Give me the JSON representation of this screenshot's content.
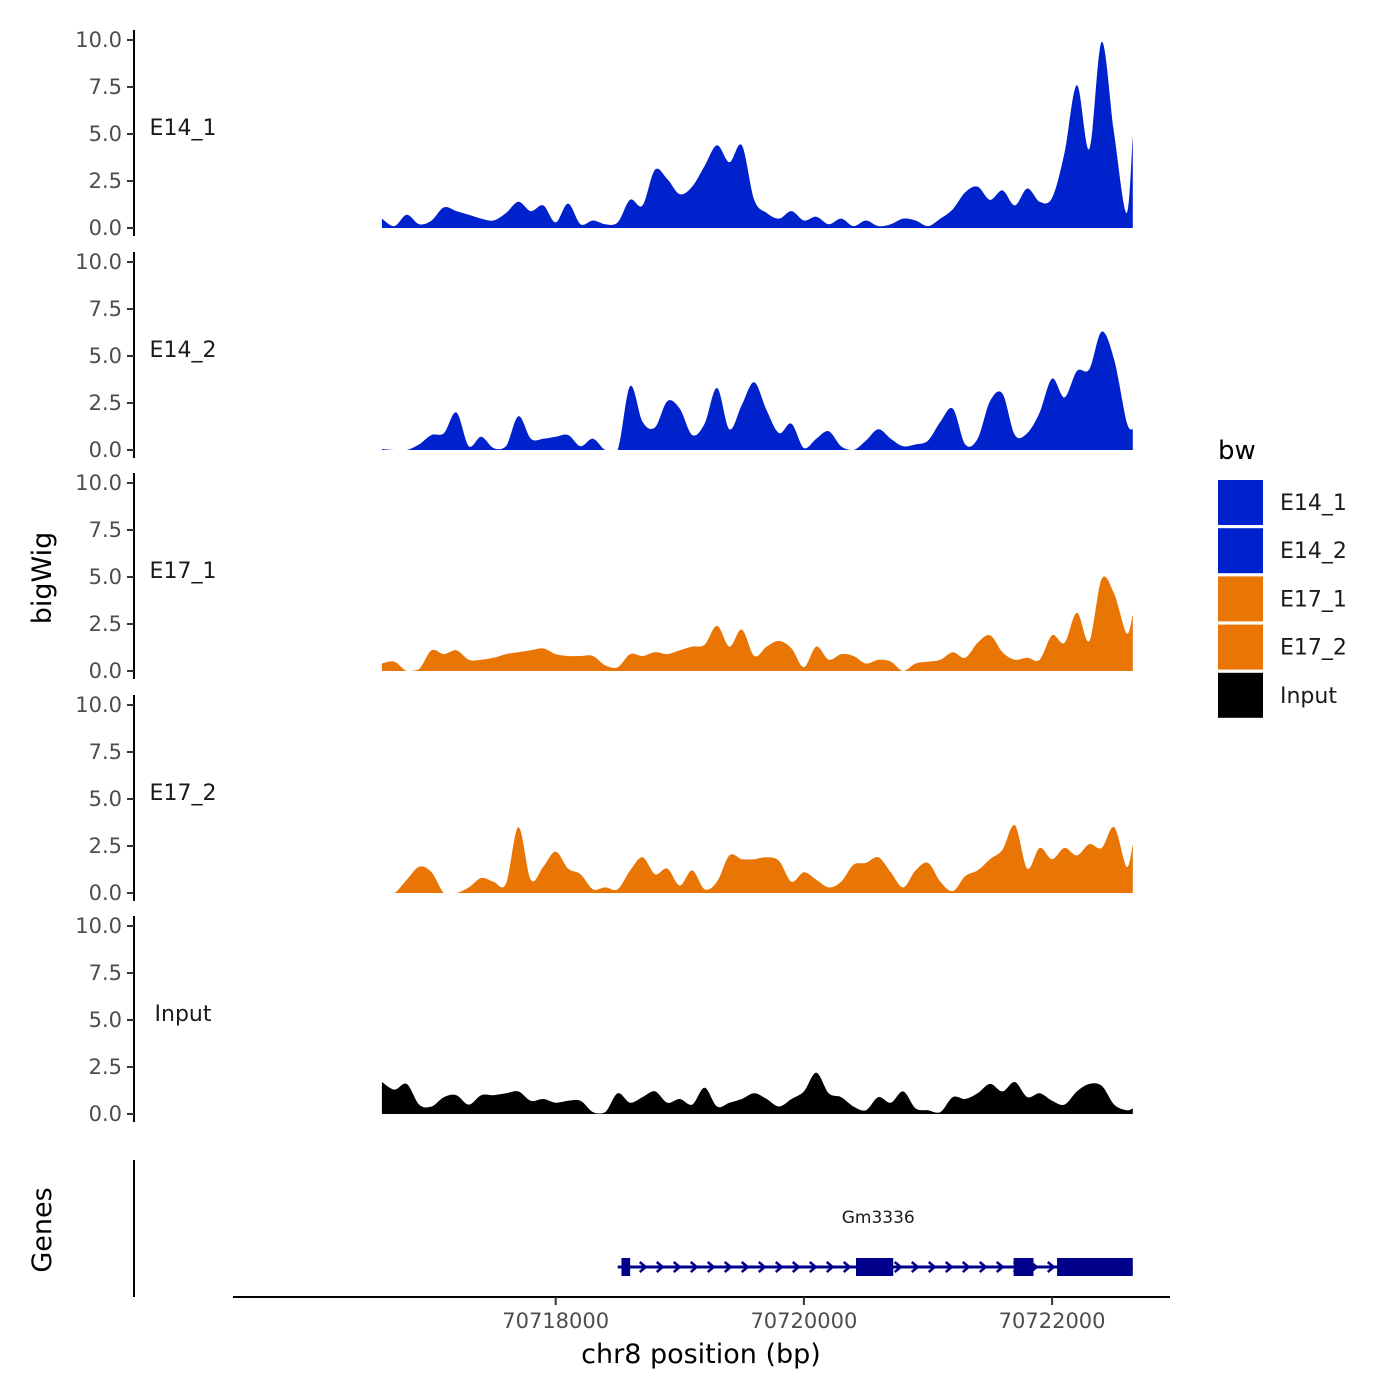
{
  "chart_data": {
    "type": "area",
    "chromosome": "chr8",
    "xlabel": "chr8 position (bp)",
    "ylabel": "bigWig",
    "gene_track_label": "Genes",
    "xlim": [
      70715400,
      70722950
    ],
    "x_ticks": [
      70718000,
      70720000,
      70722000
    ],
    "x_tick_labels": [
      "70718000",
      "70720000",
      "70722000"
    ],
    "ylim": [
      0,
      10
    ],
    "y_ticks": [
      0,
      2.5,
      5,
      7.5,
      10
    ],
    "y_tick_labels": [
      "0.0",
      "2.5",
      "5.0",
      "7.5",
      "10.0"
    ],
    "legend": {
      "title": "bw",
      "entries": [
        {
          "label": "E14_1",
          "color": "#0022cc"
        },
        {
          "label": "E14_2",
          "color": "#0022cc"
        },
        {
          "label": "E17_1",
          "color": "#e87504"
        },
        {
          "label": "E17_2",
          "color": "#e87504"
        },
        {
          "label": "Input",
          "color": "#000000"
        }
      ]
    },
    "series": [
      {
        "name": "E14_1",
        "color": "#0022cc",
        "x": [
          70716600,
          70716700,
          70716800,
          70716900,
          70717000,
          70717100,
          70717200,
          70717300,
          70717400,
          70717500,
          70717600,
          70717700,
          70717800,
          70717900,
          70718000,
          70718100,
          70718200,
          70718300,
          70718400,
          70718500,
          70718600,
          70718700,
          70718800,
          70718900,
          70719000,
          70719100,
          70719200,
          70719300,
          70719400,
          70719500,
          70719600,
          70719700,
          70719800,
          70719900,
          70720000,
          70720100,
          70720200,
          70720300,
          70720400,
          70720500,
          70720600,
          70720700,
          70720800,
          70720900,
          70721000,
          70721100,
          70721200,
          70721300,
          70721400,
          70721500,
          70721600,
          70721700,
          70721800,
          70721900,
          70722000,
          70722100,
          70722200,
          70722300,
          70722400,
          70722500,
          70722600,
          70722650
        ],
        "values": [
          0.5,
          0.1,
          0.7,
          0.2,
          0.4,
          1.1,
          0.9,
          0.7,
          0.5,
          0.4,
          0.8,
          1.4,
          0.9,
          1.2,
          0.3,
          1.3,
          0.2,
          0.4,
          0.2,
          0.3,
          1.5,
          1.2,
          3.1,
          2.6,
          1.8,
          2.2,
          3.3,
          4.4,
          3.5,
          4.4,
          1.5,
          0.8,
          0.5,
          0.9,
          0.4,
          0.6,
          0.2,
          0.5,
          0.1,
          0.4,
          0.1,
          0.2,
          0.5,
          0.4,
          0.1,
          0.5,
          1.0,
          1.9,
          2.2,
          1.5,
          2.0,
          1.2,
          2.1,
          1.4,
          1.6,
          4.0,
          7.6,
          4.2,
          9.9,
          5.0,
          0.8,
          4.9
        ]
      },
      {
        "name": "E14_2",
        "color": "#0022cc",
        "x": [
          70716600,
          70716700,
          70716800,
          70716900,
          70717000,
          70717100,
          70717200,
          70717300,
          70717400,
          70717500,
          70717600,
          70717700,
          70717800,
          70717900,
          70718000,
          70718100,
          70718200,
          70718300,
          70718400,
          70718500,
          70718600,
          70718700,
          70718800,
          70718900,
          70719000,
          70719100,
          70719200,
          70719300,
          70719400,
          70719500,
          70719600,
          70719700,
          70719800,
          70719900,
          70720000,
          70720100,
          70720200,
          70720300,
          70720400,
          70720500,
          70720600,
          70720700,
          70720800,
          70720900,
          70721000,
          70721100,
          70721200,
          70721300,
          70721400,
          70721500,
          70721600,
          70721700,
          70721800,
          70721900,
          70722000,
          70722100,
          70722200,
          70722300,
          70722400,
          70722500,
          70722600,
          70722650
        ],
        "values": [
          0.05,
          0.0,
          0.0,
          0.3,
          0.8,
          0.9,
          2.0,
          0.2,
          0.7,
          0.1,
          0.2,
          1.8,
          0.6,
          0.6,
          0.7,
          0.8,
          0.2,
          0.6,
          0.0,
          0.0,
          3.4,
          1.5,
          1.2,
          2.6,
          2.2,
          0.8,
          1.4,
          3.3,
          1.1,
          2.4,
          3.6,
          2.1,
          0.9,
          1.4,
          0.1,
          0.6,
          1.0,
          0.2,
          0.0,
          0.5,
          1.1,
          0.6,
          0.2,
          0.3,
          0.5,
          1.5,
          2.2,
          0.3,
          0.6,
          2.6,
          3.0,
          0.8,
          0.9,
          2.0,
          3.8,
          2.8,
          4.2,
          4.3,
          6.3,
          4.8,
          1.5,
          1.1
        ]
      },
      {
        "name": "E17_1",
        "color": "#e87504",
        "x": [
          70716600,
          70716700,
          70716800,
          70716900,
          70717000,
          70717100,
          70717200,
          70717300,
          70717400,
          70717500,
          70717600,
          70717700,
          70717800,
          70717900,
          70718000,
          70718100,
          70718200,
          70718300,
          70718400,
          70718500,
          70718600,
          70718700,
          70718800,
          70718900,
          70719000,
          70719100,
          70719200,
          70719300,
          70719400,
          70719500,
          70719600,
          70719700,
          70719800,
          70719900,
          70720000,
          70720100,
          70720200,
          70720300,
          70720400,
          70720500,
          70720600,
          70720700,
          70720800,
          70720900,
          70721000,
          70721100,
          70721200,
          70721300,
          70721400,
          70721500,
          70721600,
          70721700,
          70721800,
          70721900,
          70722000,
          70722100,
          70722200,
          70722300,
          70722400,
          70722500,
          70722600,
          70722650
        ],
        "values": [
          0.4,
          0.5,
          0.0,
          0.1,
          1.1,
          0.9,
          1.1,
          0.6,
          0.6,
          0.7,
          0.9,
          1.0,
          1.1,
          1.2,
          0.9,
          0.8,
          0.8,
          0.8,
          0.3,
          0.2,
          0.9,
          0.8,
          1.0,
          0.9,
          1.1,
          1.3,
          1.4,
          2.4,
          1.3,
          2.2,
          0.8,
          1.3,
          1.6,
          1.2,
          0.2,
          1.3,
          0.6,
          0.9,
          0.8,
          0.4,
          0.6,
          0.5,
          0.0,
          0.4,
          0.5,
          0.6,
          1.0,
          0.7,
          1.5,
          1.9,
          1.0,
          0.6,
          0.7,
          0.6,
          1.9,
          1.5,
          3.1,
          1.6,
          4.9,
          4.1,
          2.0,
          3.0
        ]
      },
      {
        "name": "E17_2",
        "color": "#e87504",
        "x": [
          70716600,
          70716700,
          70716800,
          70716900,
          70717000,
          70717100,
          70717200,
          70717300,
          70717400,
          70717500,
          70717600,
          70717700,
          70717800,
          70717900,
          70718000,
          70718100,
          70718200,
          70718300,
          70718400,
          70718500,
          70718600,
          70718700,
          70718800,
          70718900,
          70719000,
          70719100,
          70719200,
          70719300,
          70719400,
          70719500,
          70719600,
          70719700,
          70719800,
          70719900,
          70720000,
          70720100,
          70720200,
          70720300,
          70720400,
          70720500,
          70720600,
          70720700,
          70720800,
          70720900,
          70721000,
          70721100,
          70721200,
          70721300,
          70721400,
          70721500,
          70721600,
          70721700,
          70721800,
          70721900,
          70722000,
          70722100,
          70722200,
          70722300,
          70722400,
          70722500,
          70722600,
          70722650
        ],
        "values": [
          0.0,
          0.0,
          0.7,
          1.4,
          1.1,
          0.0,
          0.0,
          0.3,
          0.8,
          0.6,
          0.5,
          3.5,
          0.7,
          1.4,
          2.2,
          1.3,
          1.0,
          0.2,
          0.3,
          0.2,
          1.2,
          1.9,
          1.0,
          1.3,
          0.4,
          1.2,
          0.2,
          0.6,
          2.0,
          1.8,
          1.8,
          1.9,
          1.7,
          0.6,
          1.1,
          0.7,
          0.3,
          0.6,
          1.5,
          1.6,
          1.9,
          1.1,
          0.3,
          1.2,
          1.6,
          0.6,
          0.1,
          0.9,
          1.2,
          1.8,
          2.3,
          3.6,
          1.3,
          2.4,
          1.8,
          2.4,
          2.0,
          2.6,
          2.4,
          3.5,
          1.4,
          2.6
        ]
      },
      {
        "name": "Input",
        "color": "#000000",
        "x": [
          70716600,
          70716700,
          70716800,
          70716900,
          70717000,
          70717100,
          70717200,
          70717300,
          70717400,
          70717500,
          70717600,
          70717700,
          70717800,
          70717900,
          70718000,
          70718100,
          70718200,
          70718300,
          70718400,
          70718500,
          70718600,
          70718700,
          70718800,
          70718900,
          70719000,
          70719100,
          70719200,
          70719300,
          70719400,
          70719500,
          70719600,
          70719700,
          70719800,
          70719900,
          70720000,
          70720100,
          70720200,
          70720300,
          70720400,
          70720500,
          70720600,
          70720700,
          70720800,
          70720900,
          70721000,
          70721100,
          70721200,
          70721300,
          70721400,
          70721500,
          70721600,
          70721700,
          70721800,
          70721900,
          70722000,
          70722100,
          70722200,
          70722300,
          70722400,
          70722500,
          70722600,
          70722650
        ],
        "values": [
          1.7,
          1.3,
          1.6,
          0.5,
          0.4,
          0.9,
          1.0,
          0.5,
          1.0,
          1.0,
          1.1,
          1.2,
          0.7,
          0.8,
          0.6,
          0.7,
          0.7,
          0.1,
          0.1,
          1.1,
          0.6,
          0.9,
          1.2,
          0.6,
          0.8,
          0.5,
          1.4,
          0.4,
          0.6,
          0.8,
          1.1,
          0.8,
          0.4,
          0.8,
          1.2,
          2.2,
          1.1,
          0.9,
          0.4,
          0.2,
          0.9,
          0.6,
          1.2,
          0.3,
          0.2,
          0.1,
          0.9,
          0.8,
          1.1,
          1.6,
          1.2,
          1.7,
          0.9,
          1.1,
          0.7,
          0.5,
          1.2,
          1.6,
          1.5,
          0.5,
          0.2,
          0.3
        ]
      }
    ],
    "genes": [
      {
        "name": "Gm3336",
        "strand": "+",
        "color": "#00008b",
        "start": 70718500,
        "end": 70722650,
        "exons": [
          [
            70718530,
            70718600
          ],
          [
            70720420,
            70720720
          ],
          [
            70721690,
            70721850
          ],
          [
            70722040,
            70722650
          ]
        ]
      }
    ]
  }
}
